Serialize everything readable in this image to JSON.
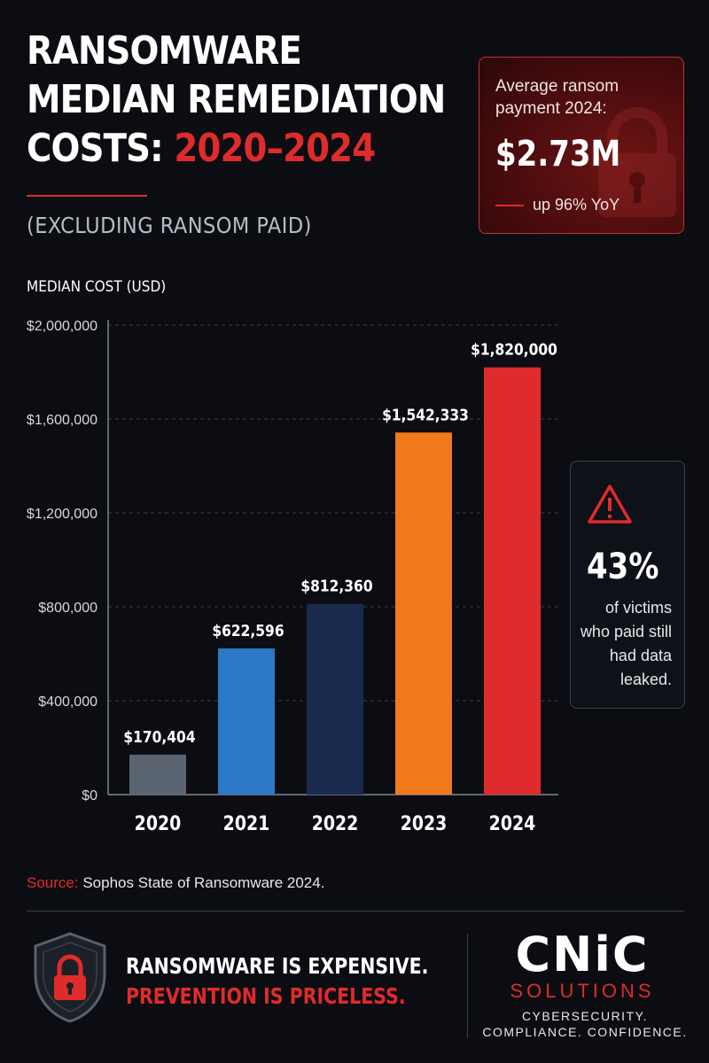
{
  "title": {
    "line1": "RANSOMWARE",
    "line2": "MEDIAN REMEDIATION",
    "line3_prefix": "COSTS: ",
    "line3_highlight": "2020–2024"
  },
  "subtitle": "(EXCLUDING RANSOM PAID)",
  "ransom_box": {
    "label": "Average ransom payment 2024:",
    "value": "$2.73M",
    "change": "up 96% YoY",
    "icon": "padlock-icon"
  },
  "leak_box": {
    "icon": "warning-triangle-icon",
    "percent": "43%",
    "text": "of victims who paid still had data leaked."
  },
  "chart_data": {
    "type": "bar",
    "ylabel": "MEDIAN COST (USD)",
    "categories": [
      "2020",
      "2021",
      "2022",
      "2023",
      "2024"
    ],
    "values": [
      170404,
      622596,
      812360,
      1542333,
      1820000
    ],
    "value_labels": [
      "$170,404",
      "$622,596",
      "$812,360",
      "$1,542,333",
      "$1,820,000"
    ],
    "bar_colors": [
      "#5a6571",
      "#2a78c6",
      "#1a2a4f",
      "#f07a1c",
      "#df2b2b"
    ],
    "ylim": [
      0,
      2000000
    ],
    "yticks": [
      0,
      400000,
      800000,
      1200000,
      1600000,
      2000000
    ],
    "ytick_labels": [
      "$0",
      "$400,000",
      "$800,000",
      "$1,200,000",
      "$1,600,000",
      "$2,000,000"
    ],
    "grid": true
  },
  "source": {
    "label": "Source:",
    "text": " Sophos State of Ransomware 2024."
  },
  "footer": {
    "tagline_line1": "RANSOMWARE IS EXPENSIVE.",
    "tagline_line2": "PREVENTION IS PRICELESS.",
    "brand_name": "CNiC",
    "brand_sub": "SOLUTIONS",
    "brand_tag_line1": "CYBERSECURITY.",
    "brand_tag_line2": "COMPLIANCE. CONFIDENCE.",
    "shield_icon": "shield-lock-icon"
  },
  "colors": {
    "background": "#0b0d12",
    "accent": "#e02b2b"
  }
}
